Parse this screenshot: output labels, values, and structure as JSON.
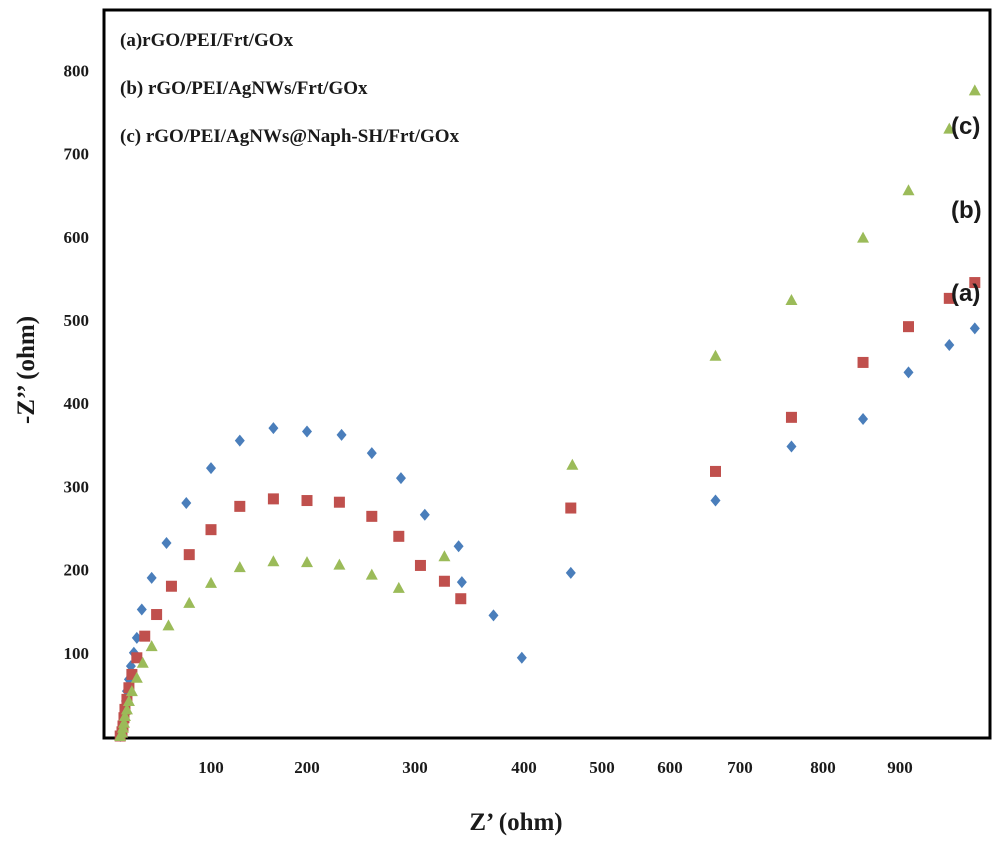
{
  "chart_data": {
    "type": "scatter",
    "xlabel": "Z’ (ohm)",
    "ylabel": "-Z’’ (ohm)",
    "x_ticks": [
      "100",
      "200",
      "300",
      "400",
      "500",
      "600",
      "700",
      "800",
      "900"
    ],
    "y_ticks": [
      "100",
      "200",
      "300",
      "400",
      "500",
      "600",
      "700",
      "800"
    ],
    "grid": false,
    "legend_position": "top-left",
    "legend": [
      "(a)rGO/PEI/Frt/GOx",
      "(b) rGO/PEI/AgNWs/Frt/GOx",
      "(c) rGO/PEI/AgNWs@Naph-SH/Frt/GOx"
    ],
    "series_labels": [
      "(c)",
      "(b)",
      "(a)"
    ],
    "series": [
      {
        "color": "#4a7ebb",
        "marker": "diamond",
        "points": [
          [
            9,
            0
          ],
          [
            10,
            5
          ],
          [
            11,
            12
          ],
          [
            12,
            20
          ],
          [
            13,
            30
          ],
          [
            14,
            42
          ],
          [
            15,
            54
          ],
          [
            17,
            68
          ],
          [
            19,
            84
          ],
          [
            22,
            100
          ],
          [
            25,
            118
          ],
          [
            30,
            152
          ],
          [
            40,
            190
          ],
          [
            55,
            232
          ],
          [
            75,
            280
          ],
          [
            100,
            322
          ],
          [
            130,
            355
          ],
          [
            165,
            370
          ],
          [
            200,
            366
          ],
          [
            232,
            362
          ],
          [
            260,
            340
          ],
          [
            287,
            310
          ],
          [
            309,
            266
          ],
          [
            340,
            228
          ],
          [
            343,
            185
          ],
          [
            372,
            145
          ],
          [
            398,
            94
          ],
          [
            460,
            196
          ],
          [
            665,
            283
          ],
          [
            762,
            348
          ],
          [
            852,
            381
          ],
          [
            910,
            437
          ],
          [
            958,
            470
          ],
          [
            988,
            490
          ]
        ]
      },
      {
        "color": "#c0504d",
        "marker": "square",
        "points": [
          [
            9,
            0
          ],
          [
            10,
            5
          ],
          [
            11,
            12
          ],
          [
            12,
            22
          ],
          [
            13,
            32
          ],
          [
            15,
            44
          ],
          [
            17,
            58
          ],
          [
            20,
            74
          ],
          [
            25,
            94
          ],
          [
            33,
            120
          ],
          [
            45,
            146
          ],
          [
            60,
            180
          ],
          [
            78,
            218
          ],
          [
            100,
            248
          ],
          [
            130,
            276
          ],
          [
            165,
            285
          ],
          [
            200,
            283
          ],
          [
            230,
            281
          ],
          [
            260,
            264
          ],
          [
            285,
            240
          ],
          [
            305,
            205
          ],
          [
            327,
            186
          ],
          [
            342,
            165
          ],
          [
            460,
            274
          ],
          [
            665,
            318
          ],
          [
            762,
            383
          ],
          [
            852,
            449
          ],
          [
            910,
            492
          ],
          [
            958,
            526
          ],
          [
            988,
            545
          ]
        ]
      },
      {
        "color": "#9bbb59",
        "marker": "triangle",
        "points": [
          [
            9,
            0
          ],
          [
            10,
            4
          ],
          [
            11,
            10
          ],
          [
            12,
            16
          ],
          [
            13,
            24
          ],
          [
            15,
            32
          ],
          [
            17,
            42
          ],
          [
            20,
            54
          ],
          [
            25,
            70
          ],
          [
            31,
            88
          ],
          [
            40,
            108
          ],
          [
            57,
            133
          ],
          [
            78,
            160
          ],
          [
            100,
            184
          ],
          [
            130,
            203
          ],
          [
            165,
            210
          ],
          [
            200,
            209
          ],
          [
            230,
            206
          ],
          [
            260,
            194
          ],
          [
            285,
            178
          ],
          [
            327,
            216
          ],
          [
            462,
            326
          ],
          [
            665,
            457
          ],
          [
            762,
            524
          ],
          [
            852,
            599
          ],
          [
            910,
            656
          ],
          [
            958,
            730
          ],
          [
            988,
            776
          ]
        ]
      }
    ]
  }
}
